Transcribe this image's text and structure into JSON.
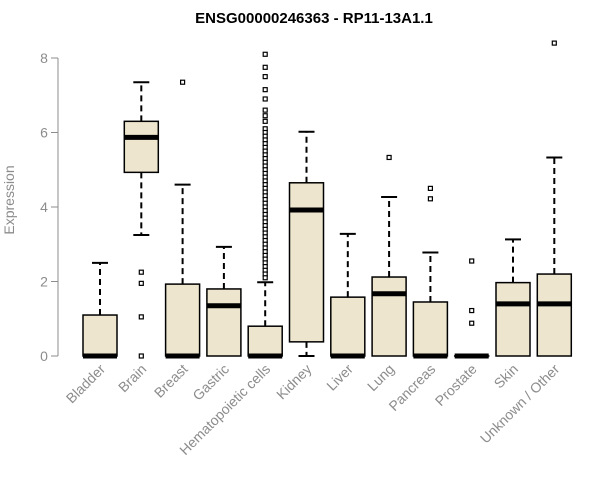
{
  "colors": {
    "box_fill": "#ede5cd",
    "stroke": "#000000",
    "axis": "#8c8c8c"
  },
  "chart_data": {
    "type": "boxplot",
    "title": "ENSG00000246363 - RP11-13A1.1",
    "ylabel": "Expression",
    "xlabel": "",
    "ylim": [
      0,
      8.3
    ],
    "yticks": [
      0,
      2,
      4,
      6,
      8
    ],
    "categories": [
      {
        "label": "Bladder",
        "q1": 0,
        "median": 0,
        "q3": 1.1,
        "whisker_low": 0,
        "whisker_high": 2.5,
        "outliers": []
      },
      {
        "label": "Brain",
        "q1": 4.93,
        "median": 5.87,
        "q3": 6.3,
        "whisker_low": 3.25,
        "whisker_high": 7.35,
        "outliers": [
          2.25,
          1.95,
          1.05,
          0
        ]
      },
      {
        "label": "Breast",
        "q1": 0,
        "median": 0,
        "q3": 1.93,
        "whisker_low": 0,
        "whisker_high": 4.6,
        "outliers": [
          7.35
        ]
      },
      {
        "label": "Gastric",
        "q1": 0,
        "median": 1.35,
        "q3": 1.8,
        "whisker_low": 0,
        "whisker_high": 2.93,
        "outliers": []
      },
      {
        "label": "Hematopoietic cells",
        "q1": 0,
        "median": 0,
        "q3": 0.8,
        "whisker_low": 0,
        "whisker_high": 1.98,
        "outliers": [
          8.1,
          7.75,
          7.5,
          7.15,
          6.9,
          6.6,
          6.45,
          6.3,
          6.1,
          6.0,
          5.9,
          5.8,
          5.7,
          5.6,
          5.5,
          5.4,
          5.3,
          5.2,
          5.1,
          5.0,
          4.9,
          4.8,
          4.7,
          4.6,
          4.5,
          4.4,
          4.3,
          4.2,
          4.1,
          4.0,
          3.9,
          3.8,
          3.7,
          3.6,
          3.5,
          3.4,
          3.3,
          3.2,
          3.1,
          3.0,
          2.9,
          2.8,
          2.7,
          2.6,
          2.5,
          2.4,
          2.3,
          2.2,
          2.1
        ]
      },
      {
        "label": "Kidney",
        "q1": 0.38,
        "median": 3.92,
        "q3": 4.65,
        "whisker_low": 0,
        "whisker_high": 6.02,
        "outliers": []
      },
      {
        "label": "Liver",
        "q1": 0,
        "median": 0,
        "q3": 1.58,
        "whisker_low": 0,
        "whisker_high": 3.28,
        "outliers": []
      },
      {
        "label": "Lung",
        "q1": 0,
        "median": 1.67,
        "q3": 2.12,
        "whisker_low": 0,
        "whisker_high": 4.27,
        "outliers": [
          5.33
        ]
      },
      {
        "label": "Pancreas",
        "q1": 0,
        "median": 0,
        "q3": 1.45,
        "whisker_low": 0,
        "whisker_high": 2.78,
        "outliers": [
          4.5,
          4.22
        ]
      },
      {
        "label": "Prostate",
        "q1": 0,
        "median": 0,
        "q3": 0,
        "whisker_low": 0,
        "whisker_high": 0,
        "outliers": [
          2.55,
          1.22,
          0.88
        ]
      },
      {
        "label": "Skin",
        "q1": 0,
        "median": 1.4,
        "q3": 1.97,
        "whisker_low": 0,
        "whisker_high": 3.13,
        "outliers": []
      },
      {
        "label": "Unknown / Other",
        "q1": 0,
        "median": 1.4,
        "q3": 2.2,
        "whisker_low": 0,
        "whisker_high": 5.33,
        "outliers": [
          8.4
        ]
      }
    ]
  }
}
